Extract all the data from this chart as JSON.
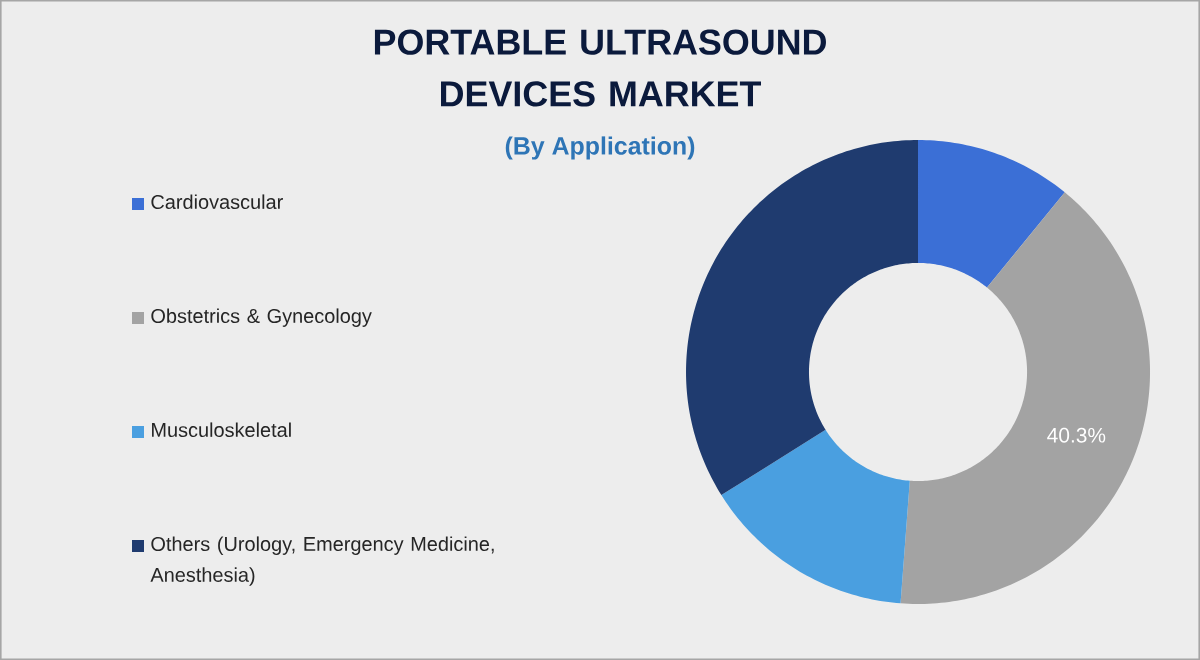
{
  "chart_data": {
    "type": "donut",
    "title": "PORTABLE ULTRASOUND DEVICES MARKET",
    "subtitle": "(By Application)",
    "categories": [
      "Cardiovascular",
      "Obstetrics & Gynecology",
      "Musculoskeletal",
      "Others (Urology, Emergency Medicine, Anesthesia)"
    ],
    "values": [
      10.9,
      40.3,
      14.9,
      33.9
    ],
    "colors": [
      "#3b6fd6",
      "#a3a3a3",
      "#4a9fe0",
      "#1f3b6f"
    ],
    "value_labels": [
      null,
      "40.3%",
      null,
      null
    ],
    "legend": "left"
  }
}
